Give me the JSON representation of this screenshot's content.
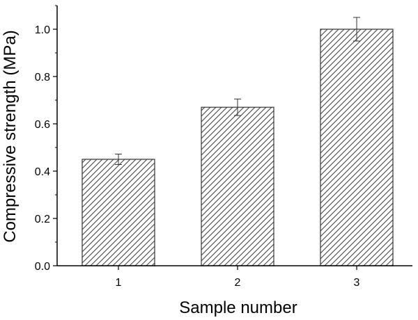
{
  "chart_data": {
    "type": "bar",
    "categories": [
      "1",
      "2",
      "3"
    ],
    "values": [
      0.45,
      0.67,
      1.0
    ],
    "error": [
      0.022,
      0.035,
      0.05
    ],
    "xlabel": "Sample number",
    "ylabel": "Compressive strength (MPa)",
    "ylim": [
      0,
      1.1
    ],
    "yticks": [
      "0.0",
      "0.2",
      "0.4",
      "0.6",
      "0.8",
      "1.0"
    ],
    "grid": false,
    "legend": "none",
    "bar_fill": "hatched",
    "colors": {
      "axis": "#000000",
      "bar_edge": "#333333",
      "hatch": "#444444",
      "background": "#ffffff"
    }
  }
}
